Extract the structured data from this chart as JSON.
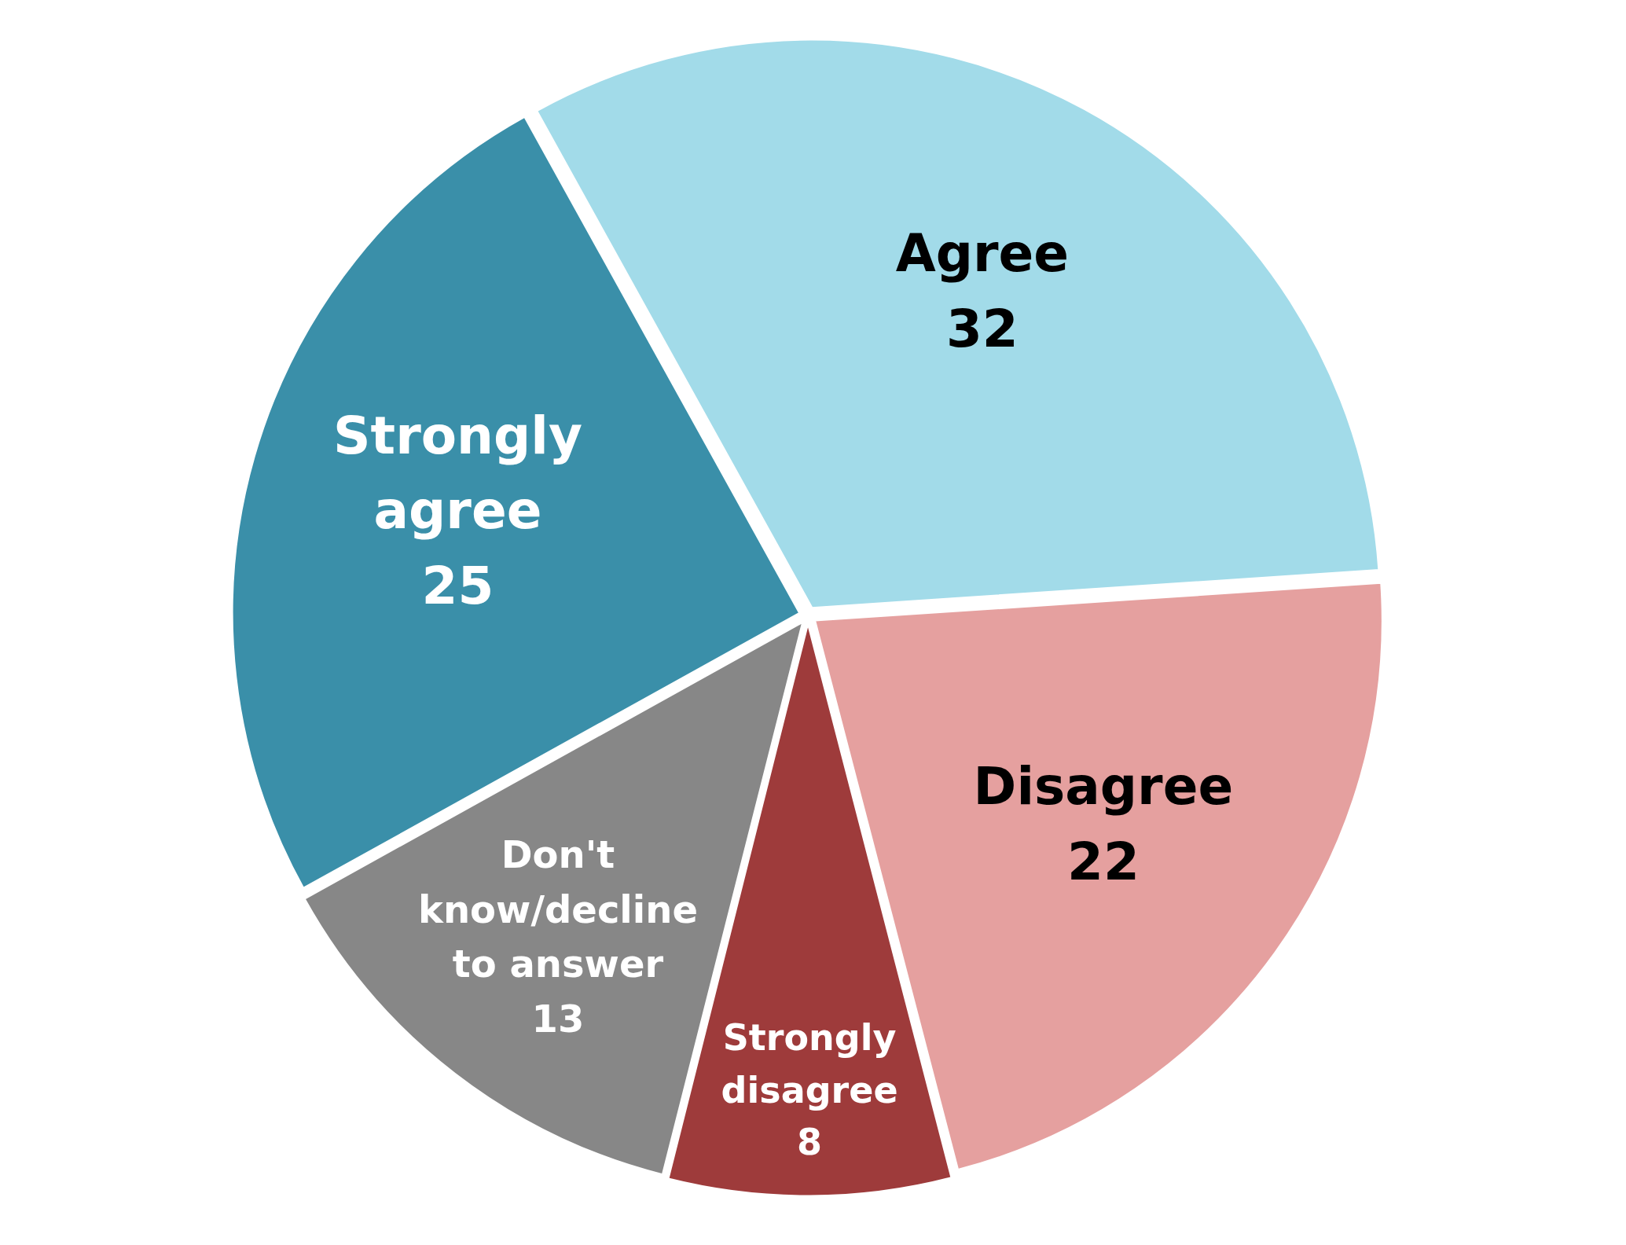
{
  "chart_data": {
    "type": "pie",
    "categories": [
      "Agree",
      "Disagree",
      "Strongly disagree",
      "Don't know/decline to answer",
      "Strongly agree"
    ],
    "values": [
      32,
      22,
      8,
      13,
      25
    ],
    "colors": [
      "#a2dbe9",
      "#e5a09f",
      "#9e3b3b",
      "#878787",
      "#3a8fa9"
    ],
    "data_labels": true,
    "legend": false
  }
}
